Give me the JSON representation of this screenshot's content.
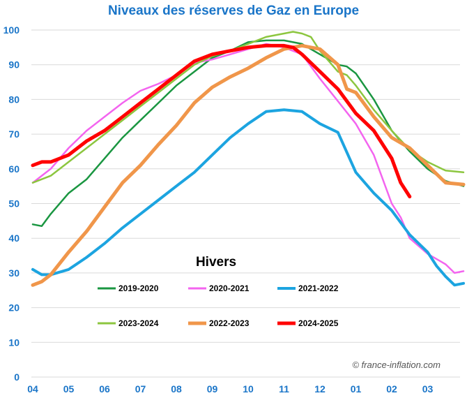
{
  "chart_data": {
    "type": "line",
    "title": "Niveaux des réserves de Gaz en Europe",
    "legend_title": "Hivers",
    "legend_placement": "center-bottom",
    "watermark": "© france-inflation.com",
    "ylim": [
      0,
      100
    ],
    "yticks": [
      0,
      10,
      20,
      30,
      40,
      50,
      60,
      70,
      80,
      90,
      100
    ],
    "xlim": [
      0,
      12
    ],
    "xticks": [
      {
        "label": "04",
        "pos": 0
      },
      {
        "label": "05",
        "pos": 1
      },
      {
        "label": "06",
        "pos": 2
      },
      {
        "label": "07",
        "pos": 3
      },
      {
        "label": "08",
        "pos": 4
      },
      {
        "label": "09",
        "pos": 5
      },
      {
        "label": "10",
        "pos": 6
      },
      {
        "label": "11",
        "pos": 7
      },
      {
        "label": "12",
        "pos": 8
      },
      {
        "label": "01",
        "pos": 9
      },
      {
        "label": "02",
        "pos": 10
      },
      {
        "label": "03",
        "pos": 11
      }
    ],
    "grid": true,
    "series": [
      {
        "name": "2019-2020",
        "color": "#1a9641",
        "width": 2.5,
        "x": [
          0,
          0.25,
          0.5,
          1,
          1.5,
          2,
          2.5,
          3,
          3.5,
          4,
          4.5,
          5,
          5.5,
          6,
          6.5,
          7,
          7.5,
          8,
          8.5,
          8.75,
          9,
          9.5,
          10,
          10.5,
          11,
          11.5,
          12
        ],
        "values": [
          44,
          43.5,
          47,
          53,
          57,
          63,
          69,
          74,
          79,
          84,
          88,
          92,
          94,
          96.5,
          97,
          97,
          96,
          93,
          90,
          89.5,
          87.5,
          80,
          71,
          65,
          60,
          56.5,
          55
        ]
      },
      {
        "name": "2020-2021",
        "color": "#f364ef",
        "width": 2.5,
        "x": [
          0,
          0.5,
          1,
          1.5,
          2,
          2.5,
          3,
          3.5,
          4,
          4.5,
          5,
          5.5,
          6,
          6.5,
          7,
          7.5,
          8,
          8.5,
          9,
          9.5,
          10,
          10.25,
          10.5,
          11,
          11.5,
          11.75,
          12
        ],
        "values": [
          56,
          60,
          66,
          71,
          75,
          79,
          82.5,
          84.5,
          87,
          90.5,
          91.5,
          93,
          94.5,
          96,
          95,
          93,
          86,
          79.5,
          73,
          64,
          50,
          46,
          40,
          35.5,
          32.5,
          30,
          30.5
        ]
      },
      {
        "name": "2021-2022",
        "color": "#1ca4e0",
        "width": 4,
        "x": [
          0,
          0.25,
          0.5,
          1,
          1.5,
          2,
          2.5,
          3,
          3.5,
          4,
          4.5,
          5,
          5.5,
          6,
          6.5,
          7,
          7.5,
          8,
          8.5,
          9,
          9.5,
          10,
          10.5,
          11,
          11.25,
          11.5,
          11.75,
          12
        ],
        "values": [
          31,
          29.5,
          29.5,
          31,
          34.5,
          38.5,
          43,
          47,
          51,
          55,
          59,
          64,
          69,
          73,
          76.5,
          77,
          76.5,
          73,
          70.5,
          59,
          53,
          48,
          41,
          36,
          32,
          29,
          26.5,
          27
        ]
      },
      {
        "name": "2023-2024",
        "color": "#8cc63f",
        "width": 2.5,
        "x": [
          0,
          0.25,
          0.5,
          1,
          1.5,
          2,
          2.5,
          3,
          3.5,
          4,
          4.5,
          5,
          5.5,
          6,
          6.5,
          7,
          7.25,
          7.5,
          7.75,
          8,
          8.5,
          8.75,
          9,
          9.5,
          10,
          10.5,
          11,
          11.5,
          12
        ],
        "values": [
          56,
          57,
          58,
          62,
          66,
          70,
          74,
          78,
          82,
          86,
          90,
          92.5,
          94,
          96,
          98,
          99,
          99.5,
          99,
          98,
          94,
          88,
          87,
          84,
          77,
          71,
          65.5,
          62,
          59.5,
          59
        ]
      },
      {
        "name": "2022-2023",
        "color": "#f0964a",
        "width": 5,
        "x": [
          0,
          0.25,
          0.5,
          1,
          1.5,
          2,
          2.5,
          3,
          3.5,
          4,
          4.5,
          5,
          5.5,
          6,
          6.5,
          7,
          7.5,
          8,
          8.5,
          8.75,
          9,
          9.5,
          10,
          10.5,
          11,
          11.5,
          12
        ],
        "values": [
          26.5,
          27.5,
          29.5,
          36,
          42,
          49,
          56,
          61,
          67,
          72.5,
          79,
          83.5,
          86.5,
          89,
          92,
          94.5,
          95.5,
          94.5,
          90,
          83,
          82,
          75,
          69,
          66,
          61,
          56,
          55.5
        ]
      },
      {
        "name": "2024-2025",
        "color": "#ff0000",
        "width": 5,
        "x": [
          0,
          0.25,
          0.5,
          1,
          1.5,
          2,
          2.5,
          3,
          3.5,
          4,
          4.5,
          5,
          5.5,
          6,
          6.5,
          7,
          7.25,
          7.5,
          8,
          8.5,
          9,
          9.5,
          10,
          10.25,
          10.5
        ],
        "values": [
          61,
          62,
          62,
          64,
          68,
          71,
          75,
          79,
          83,
          87,
          91,
          93,
          94,
          95,
          95.5,
          95.5,
          95,
          93,
          88,
          83,
          76,
          71,
          63,
          56,
          52
        ]
      }
    ]
  }
}
